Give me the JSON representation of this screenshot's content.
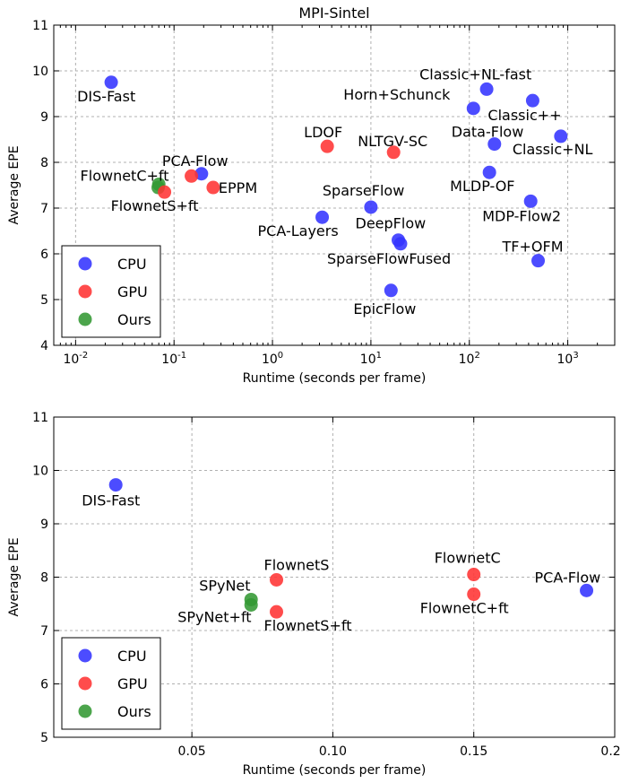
{
  "colors": {
    "CPU": "#3333ff",
    "GPU": "#ff3333",
    "Ours": "#339933"
  },
  "chart_data": [
    {
      "type": "scatter",
      "title": "MPI-Sintel",
      "xlabel": "Runtime (seconds per frame)",
      "ylabel": "Average EPE",
      "xscale": "log",
      "xlim": [
        0.006,
        3000
      ],
      "ylim": [
        4,
        11
      ],
      "x_ticks": [
        {
          "v": 0.01,
          "b": "10",
          "e": "-2"
        },
        {
          "v": 0.1,
          "b": "10",
          "e": "-1"
        },
        {
          "v": 1,
          "b": "10",
          "e": "0"
        },
        {
          "v": 10,
          "b": "10",
          "e": "1"
        },
        {
          "v": 100,
          "b": "10",
          "e": "2"
        },
        {
          "v": 1000,
          "b": "10",
          "e": "3"
        }
      ],
      "y_ticks": [
        {
          "v": 4,
          "label": "4"
        },
        {
          "v": 5,
          "label": "5"
        },
        {
          "v": 6,
          "label": "6"
        },
        {
          "v": 7,
          "label": "7"
        },
        {
          "v": 8,
          "label": "8"
        },
        {
          "v": 9,
          "label": "9"
        },
        {
          "v": 10,
          "label": "10"
        },
        {
          "v": 11,
          "label": "11"
        }
      ],
      "grid": true,
      "legend": {
        "position": "lower-left",
        "entries": [
          "CPU",
          "GPU",
          "Ours"
        ]
      },
      "points": [
        {
          "label": "DIS-Fast",
          "x": 0.023,
          "y": 9.75,
          "group": "CPU",
          "dx": -38,
          "dy": 21
        },
        {
          "label": "Classic+NL-fast",
          "x": 150,
          "y": 9.6,
          "group": "CPU",
          "dx": -75,
          "dy": -11
        },
        {
          "label": "Horn+Schunck",
          "x": 110,
          "y": 9.18,
          "group": "CPU",
          "dx": -145,
          "dy": -10
        },
        {
          "label": "Classic++",
          "x": 440,
          "y": 9.35,
          "group": "CPU",
          "dx": -50,
          "dy": 22
        },
        {
          "label": "Data-Flow",
          "x": 180,
          "y": 8.4,
          "group": "CPU",
          "dx": -48,
          "dy": -8
        },
        {
          "label": "Classic+NL",
          "x": 850,
          "y": 8.57,
          "group": "CPU",
          "dx": -54,
          "dy": 20
        },
        {
          "label": "LDOF",
          "x": 3.6,
          "y": 8.35,
          "group": "GPU",
          "dx": -26,
          "dy": -10
        },
        {
          "label": "NLTGV-SC",
          "x": 17,
          "y": 8.22,
          "group": "GPU",
          "dx": -40,
          "dy": -7
        },
        {
          "label": "PCA-Flow",
          "x": 0.19,
          "y": 7.75,
          "group": "CPU",
          "dx": -44,
          "dy": -9
        },
        {
          "label": "FlownetC+ft",
          "x": 0.15,
          "y": 7.7,
          "group": "GPU",
          "dx": -124,
          "dy": 5
        },
        {
          "label": "SPyNet+ft",
          "x": 0.07,
          "y": 7.52,
          "group": "Ours",
          "dx": 0,
          "dy": 0,
          "nolabel": true
        },
        {
          "label": "SPyNet",
          "x": 0.069,
          "y": 7.45,
          "group": "Ours",
          "dx": 0,
          "dy": 0,
          "nolabel": true
        },
        {
          "label": "FlownetS+ft",
          "x": 0.08,
          "y": 7.35,
          "group": "GPU",
          "dx": -60,
          "dy": 21
        },
        {
          "label": "EPPM",
          "x": 0.25,
          "y": 7.45,
          "group": "GPU",
          "dx": 6,
          "dy": 6
        },
        {
          "label": "MLDP-OF",
          "x": 160,
          "y": 7.78,
          "group": "CPU",
          "dx": -44,
          "dy": 21
        },
        {
          "label": "SparseFlow",
          "x": 10,
          "y": 7.02,
          "group": "CPU",
          "dx": -54,
          "dy": -13
        },
        {
          "label": "MDP-Flow2",
          "x": 420,
          "y": 7.15,
          "group": "CPU",
          "dx": -54,
          "dy": 22
        },
        {
          "label": "PCA-Layers",
          "x": 3.2,
          "y": 6.8,
          "group": "CPU",
          "dx": -72,
          "dy": 21
        },
        {
          "label": "DeepFlow",
          "x": 19,
          "y": 6.3,
          "group": "CPU",
          "dx": -48,
          "dy": -13
        },
        {
          "label": "SparseFlowFused",
          "x": 20,
          "y": 6.22,
          "group": "CPU",
          "dx": -82,
          "dy": 22
        },
        {
          "label": "TF+OFM",
          "x": 500,
          "y": 5.85,
          "group": "CPU",
          "dx": -40,
          "dy": -10
        },
        {
          "label": "EpicFlow",
          "x": 16,
          "y": 5.2,
          "group": "CPU",
          "dx": -42,
          "dy": 26
        }
      ]
    },
    {
      "type": "scatter",
      "title": "",
      "xlabel": "Runtime (seconds per frame)",
      "ylabel": "Average EPE",
      "xscale": "linear",
      "xlim": [
        0.001,
        0.2
      ],
      "ylim": [
        5,
        11
      ],
      "x_ticks": [
        {
          "v": 0.05,
          "label": "0.05"
        },
        {
          "v": 0.1,
          "label": "0.10"
        },
        {
          "v": 0.15,
          "label": "0.15"
        },
        {
          "v": 0.2,
          "label": "0.20"
        }
      ],
      "y_ticks": [
        {
          "v": 5,
          "label": "5"
        },
        {
          "v": 6,
          "label": "6"
        },
        {
          "v": 7,
          "label": "7"
        },
        {
          "v": 8,
          "label": "8"
        },
        {
          "v": 9,
          "label": "9"
        },
        {
          "v": 10,
          "label": "10"
        },
        {
          "v": 11,
          "label": "11"
        }
      ],
      "grid": true,
      "legend": {
        "position": "lower-left",
        "entries": [
          "CPU",
          "GPU",
          "Ours"
        ]
      },
      "points": [
        {
          "label": "DIS-Fast",
          "x": 0.023,
          "y": 9.73,
          "group": "CPU",
          "dx": -38,
          "dy": 23
        },
        {
          "label": "FlownetS",
          "x": 0.08,
          "y": 7.95,
          "group": "GPU",
          "dx": -14,
          "dy": -11
        },
        {
          "label": "SPyNet",
          "x": 0.071,
          "y": 7.58,
          "group": "Ours",
          "dx": -58,
          "dy": -10
        },
        {
          "label": "SPyNet+ft",
          "x": 0.071,
          "y": 7.48,
          "group": "Ours",
          "dx": -82,
          "dy": 19
        },
        {
          "label": "FlownetS+ft",
          "x": 0.08,
          "y": 7.35,
          "group": "GPU",
          "dx": -14,
          "dy": 21
        },
        {
          "label": "FlownetC",
          "x": 0.15,
          "y": 8.05,
          "group": "GPU",
          "dx": -44,
          "dy": -13
        },
        {
          "label": "FlownetC+ft",
          "x": 0.15,
          "y": 7.68,
          "group": "GPU",
          "dx": -60,
          "dy": 21
        },
        {
          "label": "PCA-Flow",
          "x": 0.19,
          "y": 7.75,
          "group": "CPU",
          "dx": -58,
          "dy": -9
        }
      ]
    }
  ]
}
